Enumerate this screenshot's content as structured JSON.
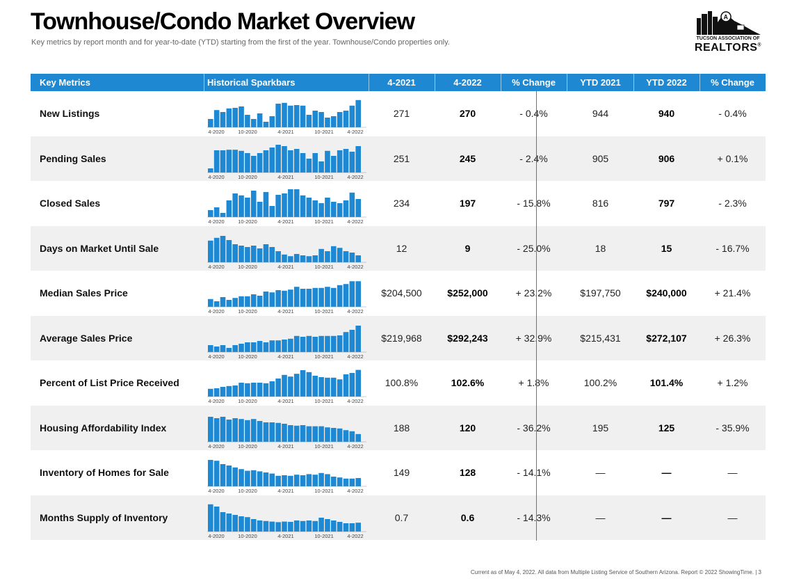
{
  "title": "Townhouse/Condo Market Overview",
  "subtitle": "Key metrics by report month and for year-to-date (YTD) starting from the first of the year. Townhouse/Condo properties only.",
  "logo": {
    "line1": "TUCSON ASSOCIATION OF",
    "line2": "REALTORS",
    "mark": "®",
    "color": "#111111"
  },
  "accent_color": "#1e88d2",
  "headers": {
    "metric": "Key Metrics",
    "spark": "Historical Sparkbars",
    "m1": "4-2021",
    "m2": "4-2022",
    "chg1": "% Change",
    "y1": "YTD 2021",
    "y2": "YTD 2022",
    "chg2": "% Change"
  },
  "spark_ticks": [
    "4-2020",
    "10-2020",
    "4-2021",
    "10-2021",
    "4-2022"
  ],
  "rows": [
    {
      "name": "New Listings",
      "m1": "271",
      "m2": "270",
      "chg1": "- 0.4%",
      "y1": "944",
      "y2": "940",
      "chg2": "- 0.4%",
      "spark": [
        0.3,
        0.62,
        0.55,
        0.68,
        0.7,
        0.75,
        0.45,
        0.3,
        0.5,
        0.2,
        0.4,
        0.85,
        0.88,
        0.78,
        0.8,
        0.78,
        0.45,
        0.6,
        0.55,
        0.35,
        0.4,
        0.55,
        0.6,
        0.78,
        0.98
      ]
    },
    {
      "name": "Pending Sales",
      "m1": "251",
      "m2": "245",
      "chg1": "- 2.4%",
      "y1": "905",
      "y2": "906",
      "chg2": "+ 0.1%",
      "spark": [
        0.15,
        0.8,
        0.8,
        0.82,
        0.82,
        0.78,
        0.7,
        0.6,
        0.7,
        0.8,
        0.9,
        1.0,
        0.95,
        0.8,
        0.85,
        0.7,
        0.5,
        0.7,
        0.4,
        0.78,
        0.6,
        0.8,
        0.85,
        0.75,
        0.95
      ]
    },
    {
      "name": "Closed Sales",
      "m1": "234",
      "m2": "197",
      "chg1": "- 15.8%",
      "y1": "816",
      "y2": "797",
      "chg2": "- 2.3%",
      "spark": [
        0.25,
        0.35,
        0.15,
        0.6,
        0.85,
        0.78,
        0.7,
        0.95,
        0.55,
        0.9,
        0.4,
        0.8,
        0.85,
        1.0,
        1.0,
        0.78,
        0.7,
        0.6,
        0.5,
        0.7,
        0.55,
        0.5,
        0.6,
        0.88,
        0.65
      ]
    },
    {
      "name": "Days on Market Until Sale",
      "m1": "12",
      "m2": "9",
      "chg1": "- 25.0%",
      "y1": "18",
      "y2": "15",
      "chg2": "- 16.7%",
      "spark": [
        0.78,
        0.88,
        0.95,
        0.8,
        0.65,
        0.6,
        0.55,
        0.6,
        0.5,
        0.65,
        0.55,
        0.4,
        0.28,
        0.22,
        0.3,
        0.25,
        0.22,
        0.25,
        0.48,
        0.4,
        0.58,
        0.52,
        0.4,
        0.35,
        0.25
      ]
    },
    {
      "name": "Median Sales Price",
      "m1": "$204,500",
      "m2": "$252,000",
      "chg1": "+ 23.2%",
      "y1": "$197,750",
      "y2": "$240,000",
      "chg2": "+ 21.4%",
      "spark": [
        0.28,
        0.2,
        0.35,
        0.25,
        0.32,
        0.38,
        0.38,
        0.45,
        0.4,
        0.55,
        0.52,
        0.6,
        0.58,
        0.62,
        0.72,
        0.65,
        0.65,
        0.68,
        0.68,
        0.72,
        0.68,
        0.78,
        0.82,
        0.92,
        0.92
      ]
    },
    {
      "name": "Average Sales Price",
      "m1": "$219,968",
      "m2": "$292,243",
      "chg1": "+ 32.9%",
      "y1": "$215,431",
      "y2": "$272,107",
      "chg2": "+ 26.3%",
      "spark": [
        0.25,
        0.2,
        0.25,
        0.15,
        0.25,
        0.3,
        0.35,
        0.35,
        0.4,
        0.35,
        0.42,
        0.42,
        0.45,
        0.48,
        0.58,
        0.55,
        0.58,
        0.55,
        0.58,
        0.58,
        0.58,
        0.6,
        0.72,
        0.8,
        0.95
      ]
    },
    {
      "name": "Percent of List Price Received",
      "m1": "100.8%",
      "m2": "102.6%",
      "chg1": "+ 1.8%",
      "y1": "100.2%",
      "y2": "101.4%",
      "chg2": "+ 1.2%",
      "spark": [
        0.28,
        0.3,
        0.35,
        0.38,
        0.4,
        0.5,
        0.48,
        0.5,
        0.5,
        0.48,
        0.55,
        0.65,
        0.78,
        0.72,
        0.82,
        0.95,
        0.88,
        0.75,
        0.7,
        0.68,
        0.68,
        0.62,
        0.8,
        0.85,
        0.96
      ]
    },
    {
      "name": "Housing Affordability Index",
      "m1": "188",
      "m2": "120",
      "chg1": "- 36.2%",
      "y1": "195",
      "y2": "125",
      "chg2": "- 35.9%",
      "spark": [
        0.9,
        0.85,
        0.9,
        0.8,
        0.85,
        0.82,
        0.78,
        0.82,
        0.75,
        0.7,
        0.7,
        0.68,
        0.65,
        0.6,
        0.58,
        0.6,
        0.56,
        0.56,
        0.56,
        0.52,
        0.5,
        0.48,
        0.42,
        0.38,
        0.28
      ]
    },
    {
      "name": "Inventory of Homes for Sale",
      "m1": "149",
      "m2": "128",
      "chg1": "- 14.1%",
      "y1": "—",
      "y2": "—",
      "chg2": "—",
      "spark": [
        0.95,
        0.92,
        0.8,
        0.75,
        0.68,
        0.62,
        0.56,
        0.58,
        0.54,
        0.5,
        0.46,
        0.38,
        0.4,
        0.38,
        0.42,
        0.4,
        0.44,
        0.42,
        0.48,
        0.44,
        0.35,
        0.32,
        0.28,
        0.28,
        0.3
      ]
    },
    {
      "name": "Months Supply of Inventory",
      "m1": "0.7",
      "m2": "0.6",
      "chg1": "- 14.3%",
      "y1": "—",
      "y2": "—",
      "chg2": "—",
      "spark": [
        0.98,
        0.9,
        0.7,
        0.65,
        0.6,
        0.55,
        0.52,
        0.45,
        0.4,
        0.38,
        0.36,
        0.34,
        0.36,
        0.35,
        0.4,
        0.38,
        0.4,
        0.38,
        0.5,
        0.45,
        0.4,
        0.35,
        0.3,
        0.3,
        0.32
      ]
    }
  ],
  "footer": "Current as of May 4, 2022. All data from Multiple Listing Service of Southern Arizona. Report © 2022 ShowingTime.  |  3"
}
